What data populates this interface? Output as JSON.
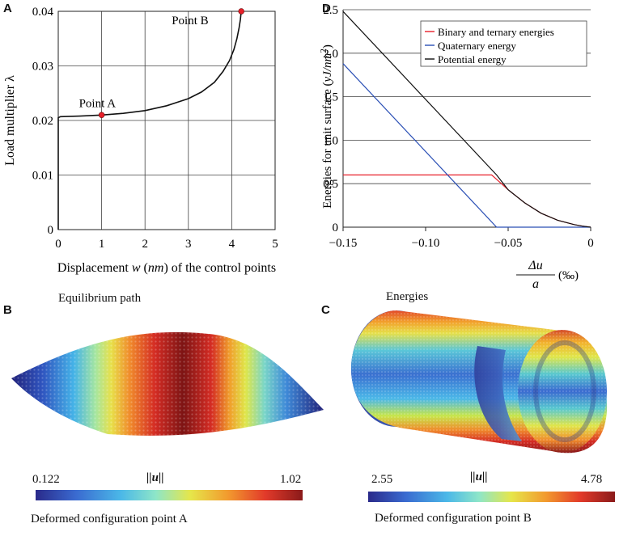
{
  "panels": {
    "a": {
      "letter": "A",
      "caption": "Equilibrium path"
    },
    "b": {
      "letter": "B",
      "caption": "Deformed configuration point A",
      "colorbar": {
        "min": "0.122",
        "max": "1.02",
        "label": "||u||"
      }
    },
    "c": {
      "letter": "C",
      "caption": "Deformed configuration point B",
      "colorbar": {
        "min": "2.55",
        "max": "4.78",
        "label": "||u||"
      }
    },
    "d": {
      "letter": "D",
      "caption": "Energies"
    }
  },
  "chart_data": [
    {
      "id": "A",
      "type": "line",
      "title": "Equilibrium path",
      "xlabel": "Displacement w (nm) of the control points",
      "xlabel_parts": {
        "pre": "Displacement ",
        "var": "w",
        "unit_open": " (",
        "unit": "nm",
        "post": ") of the control points"
      },
      "ylabel": "Load multiplier λ",
      "xlim": [
        0,
        5
      ],
      "ylim": [
        0,
        0.04
      ],
      "xticks": [
        0,
        1,
        2,
        3,
        4,
        5
      ],
      "xtick_labels": [
        "0",
        "1",
        "2",
        "3",
        "4",
        "5"
      ],
      "yticks": [
        0,
        0.01,
        0.02,
        0.03,
        0.04
      ],
      "ytick_labels": [
        "0",
        "0.01",
        "0.02",
        "0.03",
        "0.04"
      ],
      "grid": true,
      "series": [
        {
          "name": "equilibrium path",
          "color": "#111111",
          "x": [
            0,
            0,
            0.05,
            0.5,
            1.0,
            1.5,
            2.0,
            2.5,
            3.0,
            3.3,
            3.6,
            3.8,
            3.95,
            4.05,
            4.12,
            4.17,
            4.2,
            4.21,
            4.22
          ],
          "y": [
            0,
            0.0205,
            0.0207,
            0.0208,
            0.021,
            0.0213,
            0.0218,
            0.0227,
            0.024,
            0.0252,
            0.027,
            0.029,
            0.031,
            0.033,
            0.035,
            0.037,
            0.0385,
            0.0394,
            0.04
          ]
        }
      ],
      "annotations": [
        {
          "label": "Point A",
          "x": 1.0,
          "y": 0.021,
          "marker_color": "#e8202a"
        },
        {
          "label": "Point B",
          "x": 4.22,
          "y": 0.04,
          "marker_color": "#e8202a"
        }
      ]
    },
    {
      "id": "D",
      "type": "line",
      "title": "Energies",
      "ylabel": "Energies for unit surface (yJ/nm²)",
      "ylabel_parts": {
        "pre": "Energies for unit surface (",
        "unit": "yJ/nm",
        "sup": "2",
        "post": ")"
      },
      "xlabel": "Δu / a (‰)",
      "xlabel_parts": {
        "num": "Δu",
        "den": "a",
        "unit": "(‰)"
      },
      "xlim": [
        -0.15,
        0
      ],
      "ylim": [
        0,
        2.5
      ],
      "xticks": [
        -0.15,
        -0.1,
        -0.05,
        0
      ],
      "xtick_labels": [
        "−0.15",
        "−0.10",
        "−0.05",
        "0"
      ],
      "yticks": [
        0,
        0.5,
        1.0,
        1.5,
        2.0,
        2.5
      ],
      "ytick_labels": [
        "0",
        "0.5",
        "1.0",
        "1.5",
        "2.0",
        "2.5"
      ],
      "grid": true,
      "legend_position": "top-right",
      "series": [
        {
          "name": "Binary and ternary energies",
          "color": "#e8202a",
          "x": [
            -0.15,
            -0.1,
            -0.06,
            -0.057,
            -0.05,
            -0.04,
            -0.03,
            -0.02,
            -0.01,
            -0.005,
            0
          ],
          "y": [
            0.6,
            0.6,
            0.6,
            0.55,
            0.43,
            0.28,
            0.16,
            0.08,
            0.03,
            0.012,
            0
          ]
        },
        {
          "name": "Quaternary energy",
          "color": "#2a4fb5",
          "x": [
            -0.15,
            -0.057,
            0
          ],
          "y": [
            1.88,
            0,
            0
          ]
        },
        {
          "name": "Potential energy",
          "color": "#111111",
          "x": [
            -0.15,
            -0.057,
            -0.05,
            -0.04,
            -0.03,
            -0.02,
            -0.01,
            -0.005,
            0
          ],
          "y": [
            2.48,
            0.6,
            0.43,
            0.28,
            0.16,
            0.08,
            0.03,
            0.012,
            0
          ]
        }
      ]
    }
  ],
  "colors": {
    "colormap": [
      "#2a2a8a",
      "#3a6ad0",
      "#4bb8e8",
      "#8ee6c8",
      "#e6e64a",
      "#f29a2e",
      "#e23a2a",
      "#8a1a1a"
    ],
    "marker": "#e8202a"
  }
}
